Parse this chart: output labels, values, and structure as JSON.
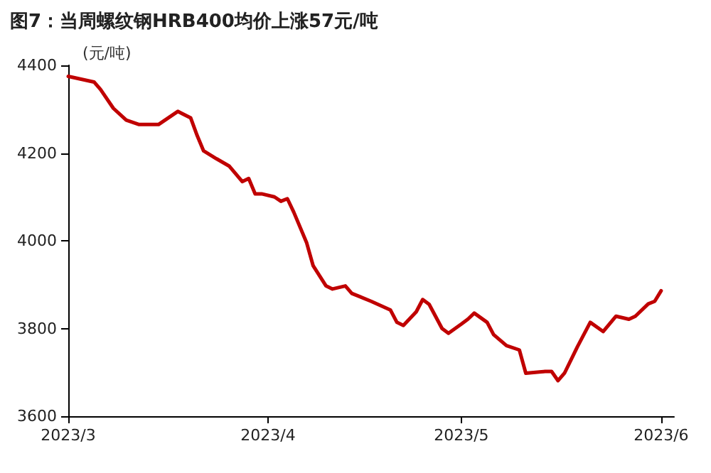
{
  "chart_data": {
    "type": "line",
    "title": "图7：当周螺纹钢HRB400均价上涨57元/吨",
    "ylabel": "(元/吨)",
    "x": [
      "2023-03-01",
      "2023-03-05",
      "2023-03-06",
      "2023-03-08",
      "2023-03-10",
      "2023-03-12",
      "2023-03-15",
      "2023-03-18",
      "2023-03-20",
      "2023-03-21",
      "2023-03-22",
      "2023-03-24",
      "2023-03-26",
      "2023-03-28",
      "2023-03-29",
      "2023-03-30",
      "2023-03-31",
      "2023-04-02",
      "2023-04-03",
      "2023-04-04",
      "2023-04-05",
      "2023-04-07",
      "2023-04-08",
      "2023-04-10",
      "2023-04-11",
      "2023-04-13",
      "2023-04-14",
      "2023-04-17",
      "2023-04-20",
      "2023-04-21",
      "2023-04-22",
      "2023-04-24",
      "2023-04-25",
      "2023-04-26",
      "2023-04-28",
      "2023-04-29",
      "2023-05-01",
      "2023-05-02",
      "2023-05-03",
      "2023-05-05",
      "2023-05-06",
      "2023-05-08",
      "2023-05-10",
      "2023-05-11",
      "2023-05-14",
      "2023-05-15",
      "2023-05-16",
      "2023-05-17",
      "2023-05-19",
      "2023-05-21",
      "2023-05-23",
      "2023-05-25",
      "2023-05-27",
      "2023-05-28",
      "2023-05-30",
      "2023-05-31",
      "2023-06-01"
    ],
    "series": [
      {
        "color": "#c00000",
        "values": [
          4375,
          4362,
          4345,
          4302,
          4275,
          4265,
          4265,
          4295,
          4280,
          4240,
          4205,
          4187,
          4170,
          4135,
          4142,
          4107,
          4107,
          4100,
          4090,
          4096,
          4065,
          3995,
          3943,
          3897,
          3890,
          3897,
          3880,
          3862,
          3842,
          3814,
          3807,
          3838,
          3866,
          3855,
          3800,
          3789,
          3810,
          3821,
          3835,
          3814,
          3786,
          3761,
          3751,
          3698,
          3702,
          3702,
          3681,
          3698,
          3758,
          3814,
          3793,
          3828,
          3821,
          3828,
          3856,
          3862,
          3886
        ]
      }
    ],
    "xlim": [
      "2023-03-01",
      "2023-06-03"
    ],
    "xticks": [
      {
        "value": "2023-03-01",
        "label": "2023/3"
      },
      {
        "value": "2023-04-01",
        "label": "2023/4"
      },
      {
        "value": "2023-05-01",
        "label": "2023/5"
      },
      {
        "value": "2023-06-01",
        "label": "2023/6"
      }
    ],
    "ylim": [
      3600,
      4400
    ],
    "yticks": [
      3600,
      3800,
      4000,
      4200,
      4400
    ],
    "grid": false,
    "marker": "none",
    "line_style": "solid"
  }
}
